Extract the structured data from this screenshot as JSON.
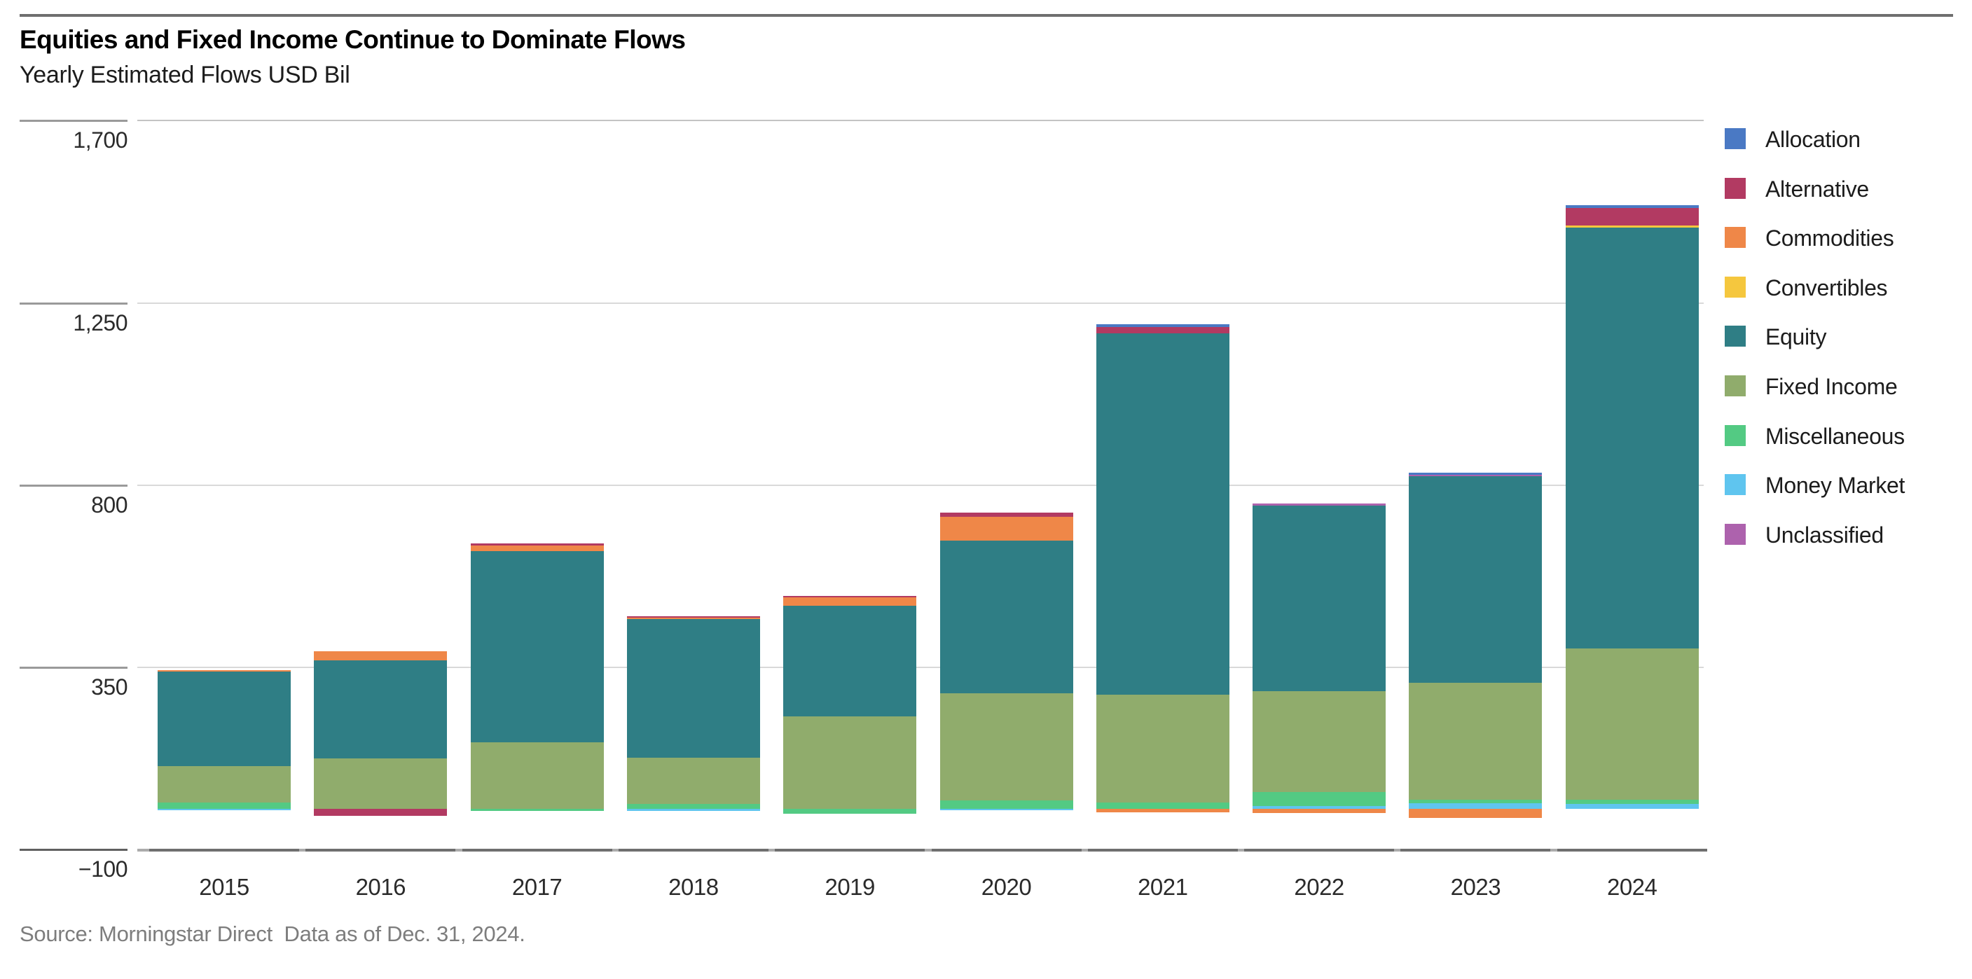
{
  "header": {
    "title": "Equities and Fixed Income Continue to Dominate Flows",
    "subtitle": "Yearly Estimated Flows USD Bil"
  },
  "source": "Source: Morningstar Direct  Data as of Dec. 31, 2024.",
  "legend": {
    "items": [
      {
        "label": "Allocation",
        "color": "#4a79c4"
      },
      {
        "label": "Alternative",
        "color": "#b23a62"
      },
      {
        "label": "Commodities",
        "color": "#ef8748"
      },
      {
        "label": "Convertibles",
        "color": "#f5c73e"
      },
      {
        "label": "Equity",
        "color": "#2f7e85"
      },
      {
        "label": "Fixed Income",
        "color": "#90ac6c"
      },
      {
        "label": "Miscellaneous",
        "color": "#53ca83"
      },
      {
        "label": "Money Market",
        "color": "#5fc5ef"
      },
      {
        "label": "Unclassified",
        "color": "#ad62ad"
      }
    ]
  },
  "chart_data": {
    "type": "bar",
    "variant": "stacked-vertical",
    "title": "Equities and Fixed Income Continue to Dominate Flows",
    "subtitle": "Yearly Estimated Flows USD Bil",
    "unit": "USD Bil",
    "categories": [
      "2015",
      "2016",
      "2017",
      "2018",
      "2019",
      "2020",
      "2021",
      "2022",
      "2023",
      "2024"
    ],
    "y_axis": {
      "tick_labels": [
        "1,700",
        "1,250",
        "800",
        "350",
        "−100"
      ],
      "tick_values": [
        1700,
        1250,
        800,
        350,
        -100
      ],
      "ylim": [
        -100,
        1700
      ],
      "grid": true
    },
    "legend_position": "right",
    "series_colors": {
      "Allocation": "#4a79c4",
      "Alternative": "#b23a62",
      "Commodities": "#ef8748",
      "Convertibles": "#f5c73e",
      "Equity": "#2f7e85",
      "Fixed Income": "#90ac6c",
      "Miscellaneous": "#53ca83",
      "Money Market": "#5fc5ef",
      "Unclassified": "#ad62ad"
    },
    "bars": [
      {
        "year": "2015",
        "total": 343,
        "positive": [
          {
            "series": "Miscellaneous",
            "value": 15
          },
          {
            "series": "Fixed Income",
            "value": 90
          },
          {
            "series": "Equity",
            "value": 234
          },
          {
            "series": "Commodities",
            "value": 4
          }
        ],
        "negative": [
          {
            "series": "Money Market",
            "value": -3
          }
        ]
      },
      {
        "year": "2016",
        "total": 390,
        "positive": [
          {
            "series": "Fixed Income",
            "value": 124
          },
          {
            "series": "Equity",
            "value": 243
          },
          {
            "series": "Commodities",
            "value": 23
          }
        ],
        "negative": [
          {
            "series": "Alternative",
            "value": -17
          }
        ]
      },
      {
        "year": "2017",
        "total": 655,
        "positive": [
          {
            "series": "Fixed Income",
            "value": 165
          },
          {
            "series": "Equity",
            "value": 472
          },
          {
            "series": "Commodities",
            "value": 13
          },
          {
            "series": "Alternative",
            "value": 5
          }
        ],
        "negative": [
          {
            "series": "Miscellaneous",
            "value": -5
          }
        ]
      },
      {
        "year": "2018",
        "total": 476,
        "positive": [
          {
            "series": "Miscellaneous",
            "value": 12
          },
          {
            "series": "Fixed Income",
            "value": 115
          },
          {
            "series": "Equity",
            "value": 343
          },
          {
            "series": "Commodities",
            "value": 3
          },
          {
            "series": "Alternative",
            "value": 3
          }
        ],
        "negative": [
          {
            "series": "Money Market",
            "value": -5
          }
        ]
      },
      {
        "year": "2019",
        "total": 526,
        "positive": [
          {
            "series": "Fixed Income",
            "value": 229
          },
          {
            "series": "Equity",
            "value": 273
          },
          {
            "series": "Commodities",
            "value": 20
          },
          {
            "series": "Alternative",
            "value": 4
          }
        ],
        "negative": [
          {
            "series": "Miscellaneous",
            "value": -12
          }
        ]
      },
      {
        "year": "2020",
        "total": 731,
        "positive": [
          {
            "series": "Miscellaneous",
            "value": 20
          },
          {
            "series": "Fixed Income",
            "value": 265
          },
          {
            "series": "Equity",
            "value": 378
          },
          {
            "series": "Commodities",
            "value": 59
          },
          {
            "series": "Alternative",
            "value": 9
          }
        ],
        "negative": [
          {
            "series": "Money Market",
            "value": -4
          }
        ]
      },
      {
        "year": "2021",
        "total": 1197,
        "positive": [
          {
            "series": "Miscellaneous",
            "value": 16
          },
          {
            "series": "Fixed Income",
            "value": 266
          },
          {
            "series": "Equity",
            "value": 893
          },
          {
            "series": "Alternative",
            "value": 16
          },
          {
            "series": "Allocation",
            "value": 6
          }
        ],
        "negative": [
          {
            "series": "Commodities",
            "value": -8
          }
        ]
      },
      {
        "year": "2022",
        "total": 754,
        "positive": [
          {
            "series": "Money Market",
            "value": 7
          },
          {
            "series": "Miscellaneous",
            "value": 35
          },
          {
            "series": "Fixed Income",
            "value": 248
          },
          {
            "series": "Equity",
            "value": 459
          },
          {
            "series": "Unclassified",
            "value": 5
          }
        ],
        "negative": [
          {
            "series": "Commodities",
            "value": -10
          }
        ]
      },
      {
        "year": "2023",
        "total": 831,
        "positive": [
          {
            "series": "Money Market",
            "value": 14
          },
          {
            "series": "Miscellaneous",
            "value": 8
          },
          {
            "series": "Fixed Income",
            "value": 289
          },
          {
            "series": "Equity",
            "value": 511
          },
          {
            "series": "Unclassified",
            "value": 4
          },
          {
            "series": "Allocation",
            "value": 5
          }
        ],
        "negative": [
          {
            "series": "Commodities",
            "value": -23
          }
        ]
      },
      {
        "year": "2024",
        "total": 1492,
        "positive": [
          {
            "series": "Money Market",
            "value": 12
          },
          {
            "series": "Miscellaneous",
            "value": 10
          },
          {
            "series": "Fixed Income",
            "value": 375
          },
          {
            "series": "Equity",
            "value": 1039
          },
          {
            "series": "Convertibles",
            "value": 6
          },
          {
            "series": "Alternative",
            "value": 43
          },
          {
            "series": "Allocation",
            "value": 7
          }
        ],
        "negative": []
      }
    ]
  },
  "layout_note_values_visible_only": true
}
